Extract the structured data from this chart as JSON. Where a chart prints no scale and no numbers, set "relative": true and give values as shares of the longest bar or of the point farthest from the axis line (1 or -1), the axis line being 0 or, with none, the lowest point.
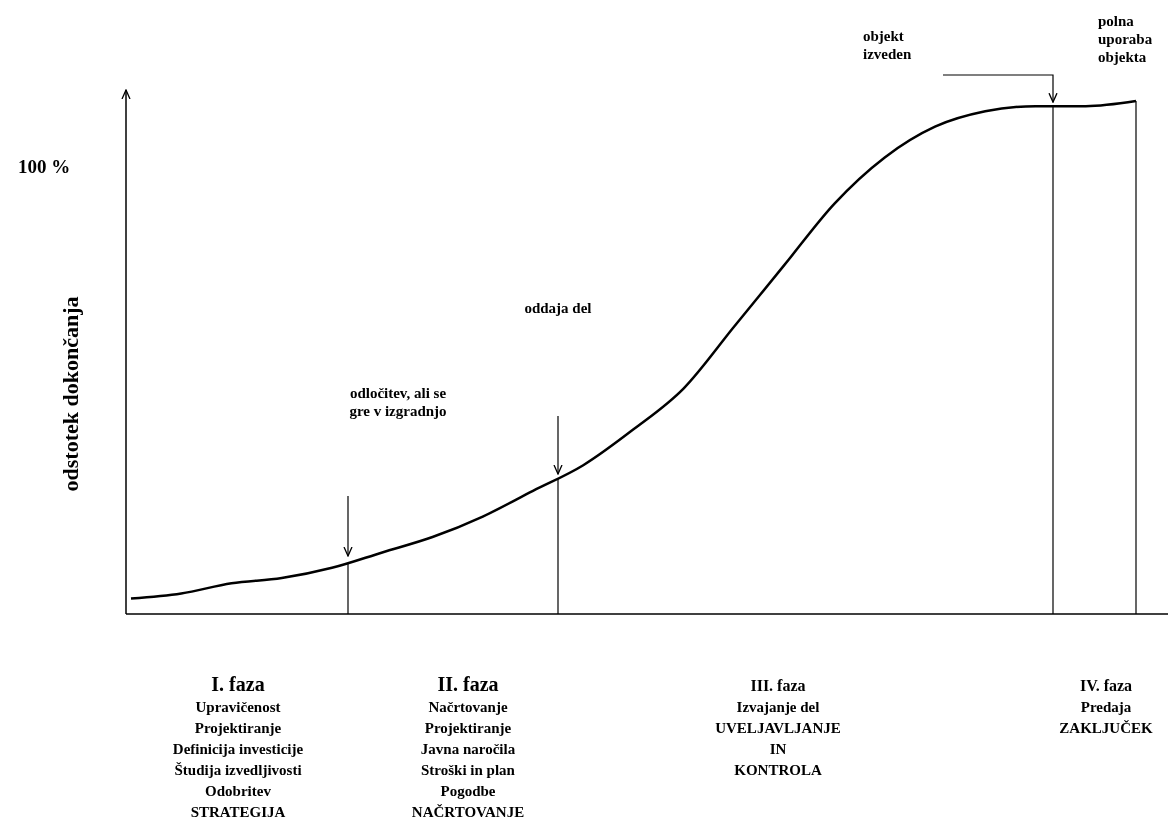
{
  "chart_data": {
    "type": "line",
    "relative": true,
    "ylabel": "odstotek dokončanja",
    "color": "#000000",
    "categories": [
      null,
      null,
      null,
      null,
      null,
      null,
      null,
      null,
      null,
      null,
      null,
      null,
      null,
      null,
      null,
      null,
      null,
      null,
      null,
      null,
      null
    ],
    "values": [
      0.03,
      0.04,
      0.06,
      0.07,
      0.09,
      0.12,
      0.15,
      0.19,
      0.24,
      0.29,
      0.36,
      0.44,
      0.56,
      0.68,
      0.8,
      0.89,
      0.95,
      0.98,
      0.99,
      0.99,
      1
    ],
    "annotations": [
      "100 %",
      "odločitev, ali se\ngre v izgradnjo",
      "oddaja del",
      "objekt\nizveden",
      "polna\nuporaba\nobjekta",
      "I. faza\nUpravičenost\nProjektiranje\nDefinicija investicije\nŠtudija izvedljivosti\nOdobritev\nSTRATEGIJA",
      "II. faza\nNačrtovanje\nProjektiranje\nJavna naročila\nStroški in plan\nPogodbe\nNAČRTOVANJE",
      "III. faza\nIzvajanje del\nUVELJAVLJANJE\nIN\nKONTROLA",
      "IV. faza\nPredaja\nZAKLJUČEK"
    ]
  }
}
